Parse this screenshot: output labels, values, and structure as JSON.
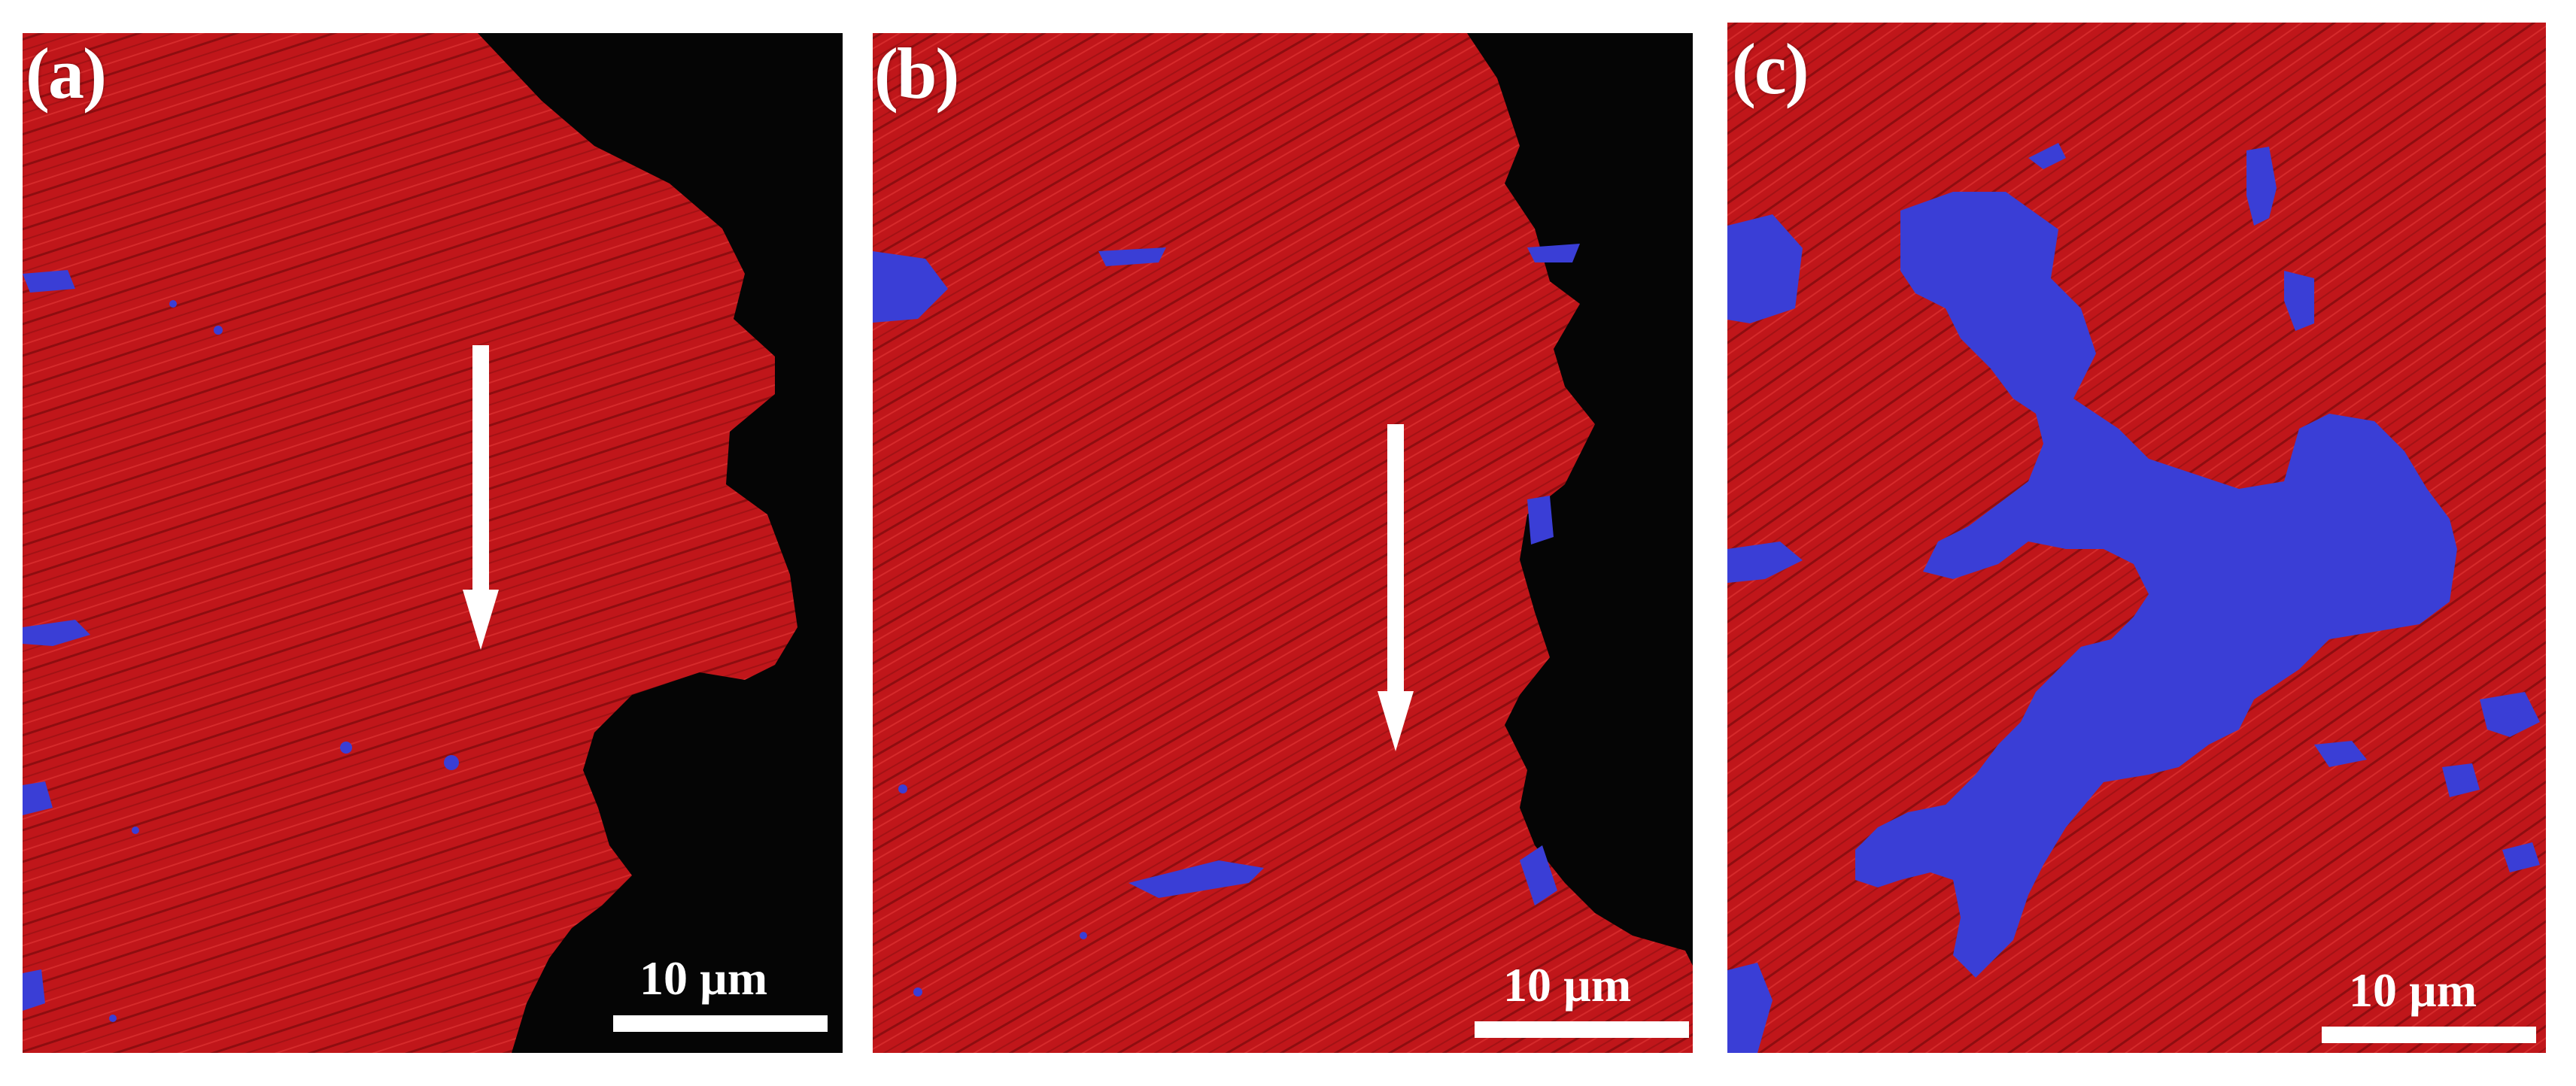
{
  "panels": [
    {
      "label": "(a)",
      "scale_bar": "10 µm"
    },
    {
      "label": "(b)",
      "scale_bar": "10 µm"
    },
    {
      "label": "(c)",
      "scale_bar": "10 µm"
    }
  ],
  "colors": {
    "phase_red": "#c0161a",
    "phase_blue": "#3a3ed6",
    "background_black": "#050505",
    "annotation_white": "#ffffff"
  }
}
